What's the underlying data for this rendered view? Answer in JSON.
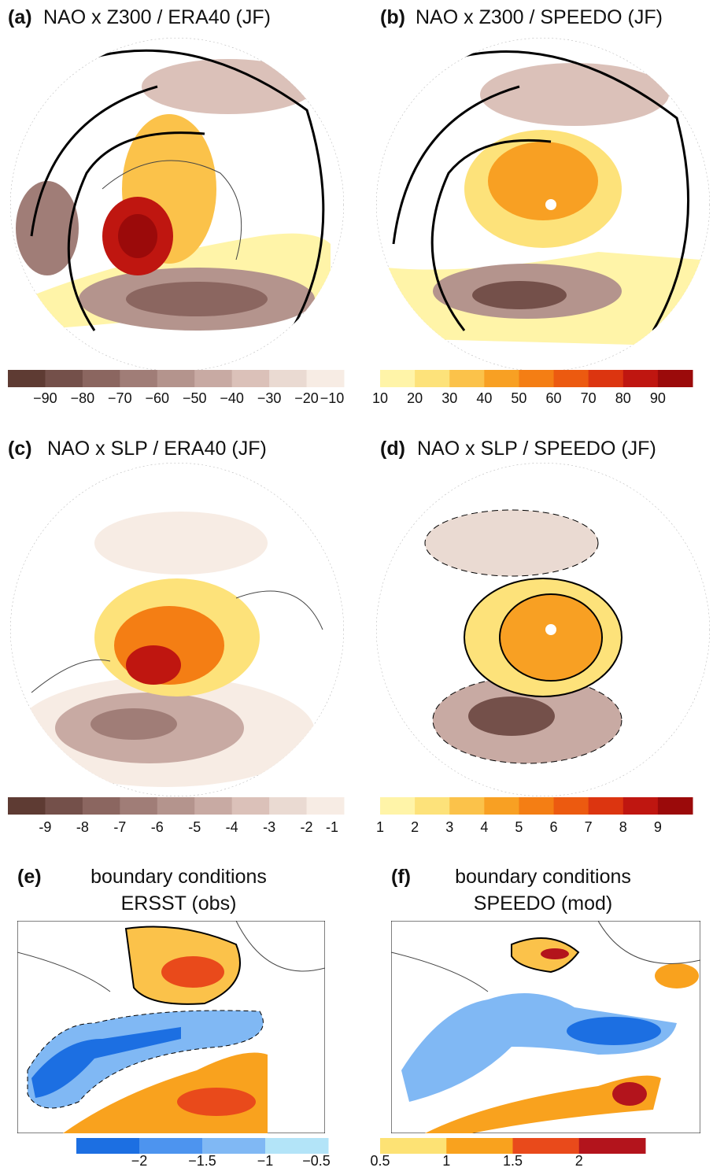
{
  "panels": [
    {
      "letter": "(a)",
      "title": "NAO x Z300 / ERA40 (JF)"
    },
    {
      "letter": "(b)",
      "title": "NAO x Z300 / SPEEDO (JF)"
    },
    {
      "letter": "(c)",
      "title": "NAO x SLP / ERA40 (JF)"
    },
    {
      "letter": "(d)",
      "title": "NAO x SLP / SPEEDO (JF)"
    },
    {
      "letter": "(e)",
      "title": "boundary conditions",
      "subtitle": "ERSST (obs)"
    },
    {
      "letter": "(f)",
      "title": "boundary conditions",
      "subtitle": "SPEEDO (mod)"
    }
  ],
  "colorbars": [
    {
      "colors": [
        "#5e3b33",
        "#74504a",
        "#8b6660",
        "#a07d77",
        "#b4948d",
        "#c8aaa3",
        "#dbc1b9",
        "#eadad2",
        "#f7ece4"
      ],
      "labels": [
        "−90",
        "−80",
        "−70",
        "−60",
        "−50",
        "−40",
        "−30",
        "−20",
        "−10"
      ]
    },
    {
      "colors": [
        "#fff4a8",
        "#fde27a",
        "#fbc24a",
        "#f8a023",
        "#f47e14",
        "#ec5a10",
        "#dc3510",
        "#bf1610",
        "#9b0a0a"
      ],
      "labels": [
        "10",
        "20",
        "30",
        "40",
        "50",
        "60",
        "70",
        "80",
        "90"
      ]
    },
    {
      "colors": [
        "#5e3b33",
        "#74504a",
        "#8b6660",
        "#a07d77",
        "#b4948d",
        "#c8aaa3",
        "#dbc1b9",
        "#eadad2",
        "#f7ece4"
      ],
      "labels": [
        "-9",
        "-8",
        "-7",
        "-6",
        "-5",
        "-4",
        "-3",
        "-2",
        "-1"
      ]
    },
    {
      "colors": [
        "#fff4a8",
        "#fde27a",
        "#fbc24a",
        "#f8a023",
        "#f47e14",
        "#ec5a10",
        "#dc3510",
        "#bf1610",
        "#9b0a0a"
      ],
      "labels": [
        "1",
        "2",
        "3",
        "4",
        "5",
        "6",
        "7",
        "8",
        "9"
      ]
    },
    {
      "colors": [
        "#1c6fe2",
        "#4d94ef",
        "#80b8f4",
        "#b3e4f8"
      ],
      "labels": [
        "−2",
        "−1.5",
        "−1",
        "−0.5"
      ]
    },
    {
      "colors": [
        "#fde274",
        "#f9a21e",
        "#e94a1b",
        "#b3141c"
      ],
      "labels": [
        "0.5",
        "1",
        "1.5",
        "2"
      ]
    }
  ]
}
